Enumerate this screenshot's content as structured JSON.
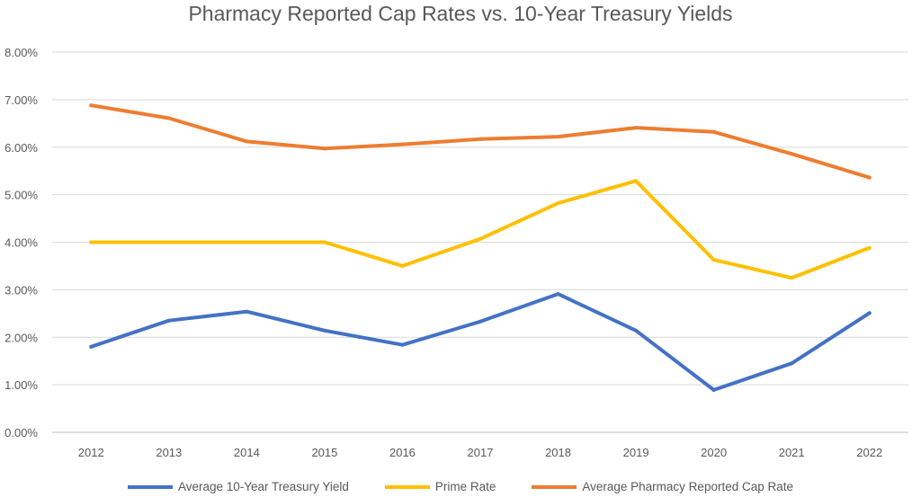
{
  "chart_data": {
    "type": "line",
    "title": "Pharmacy Reported Cap Rates vs. 10-Year Treasury Yields",
    "xlabel": "",
    "ylabel": "",
    "categories": [
      "2012",
      "2013",
      "2014",
      "2015",
      "2016",
      "2017",
      "2018",
      "2019",
      "2020",
      "2021",
      "2022"
    ],
    "ylim": [
      0,
      0.08
    ],
    "yticks": [
      "0.00%",
      "1.00%",
      "2.00%",
      "3.00%",
      "4.00%",
      "5.00%",
      "6.00%",
      "7.00%",
      "8.00%"
    ],
    "grid": true,
    "legend_position": "bottom",
    "series": [
      {
        "name": "Average 10-Year Treasury Yield",
        "color": "#4472C4",
        "values": [
          0.018,
          0.0235,
          0.0254,
          0.0214,
          0.0184,
          0.0233,
          0.0291,
          0.0214,
          0.0089,
          0.0145,
          0.0251
        ]
      },
      {
        "name": "Prime Rate",
        "color": "#FFC000",
        "values": [
          0.04,
          0.04,
          0.04,
          0.04,
          0.035,
          0.0407,
          0.0482,
          0.0529,
          0.0363,
          0.0325,
          0.0388
        ]
      },
      {
        "name": "Average Pharmacy Reported Cap Rate",
        "color": "#ED7D31",
        "values": [
          0.0688,
          0.0661,
          0.0612,
          0.0597,
          0.0606,
          0.0617,
          0.0622,
          0.0641,
          0.0632,
          0.0586,
          0.0536
        ]
      }
    ]
  }
}
